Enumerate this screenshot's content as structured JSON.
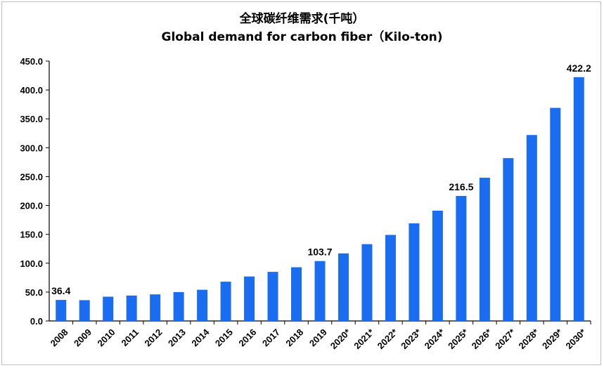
{
  "chart_data": {
    "type": "bar",
    "title": "全球碳纤维需求(千吨）",
    "subtitle": "Global demand for carbon fiber（Kilo-ton)",
    "categories": [
      "2008",
      "2009",
      "2010",
      "2011",
      "2012",
      "2013",
      "2014",
      "2015",
      "2016",
      "2017",
      "2018",
      "2019",
      "2020*",
      "2021*",
      "2022*",
      "2023*",
      "2024*",
      "2025*",
      "2026*",
      "2027*",
      "2028*",
      "2029*",
      "2030*"
    ],
    "values": [
      36.4,
      36,
      42,
      44,
      46,
      50,
      54,
      68,
      77,
      85,
      93,
      103.7,
      117,
      133,
      149,
      169,
      191,
      216.5,
      248,
      282,
      322,
      369,
      422.2
    ],
    "data_labels": [
      {
        "index": 0,
        "text": "36.4"
      },
      {
        "index": 11,
        "text": "103.7"
      },
      {
        "index": 17,
        "text": "216.5"
      },
      {
        "index": 22,
        "text": "422.2"
      }
    ],
    "yticks": [
      "0.0",
      "50.0",
      "100.0",
      "150.0",
      "200.0",
      "250.0",
      "300.0",
      "350.0",
      "400.0",
      "450.0"
    ],
    "ylim": [
      0,
      450
    ],
    "grid": false,
    "bar_color": "#1a6cf0",
    "xlabel": "",
    "ylabel": ""
  }
}
